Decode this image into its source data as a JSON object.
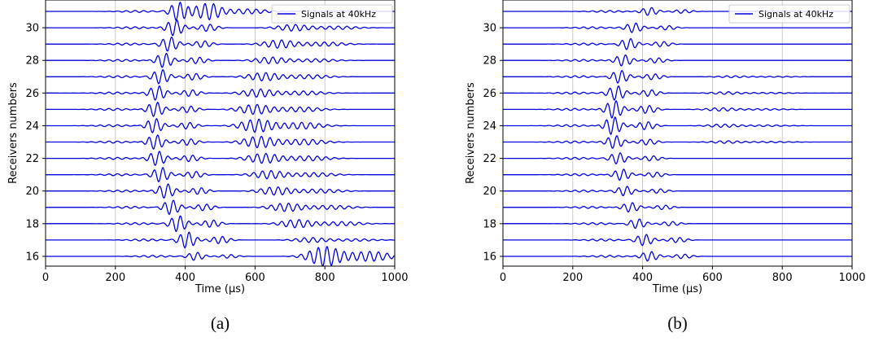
{
  "chart_data": [
    {
      "type": "line",
      "panel_label": "(a)",
      "xlabel": "Time (μs)",
      "ylabel": "Receivers numbers",
      "xlim": [
        0,
        1000
      ],
      "ylim": [
        15.4,
        31.7
      ],
      "xticks": [
        "0",
        "200",
        "400",
        "600",
        "800",
        "1000"
      ],
      "yticks": [
        "16",
        "18",
        "20",
        "22",
        "24",
        "26",
        "28",
        "30"
      ],
      "grid": "vertical",
      "legend": {
        "label": "Signals at 40kHz",
        "position": "top-right"
      },
      "line_color": "#0000dd",
      "receivers": [
        16,
        17,
        18,
        19,
        20,
        21,
        22,
        23,
        24,
        25,
        26,
        27,
        28,
        29,
        30,
        31
      ],
      "first_arrival_us": [
        430,
        405,
        380,
        360,
        345,
        330,
        320,
        315,
        312,
        315,
        320,
        330,
        340,
        355,
        370,
        380
      ],
      "first_amplitude": [
        0.25,
        0.5,
        0.5,
        0.45,
        0.45,
        0.45,
        0.45,
        0.45,
        0.45,
        0.45,
        0.45,
        0.45,
        0.45,
        0.45,
        0.5,
        0.55
      ],
      "second_arrival_us": [
        800,
        760,
        720,
        690,
        660,
        640,
        625,
        612,
        605,
        600,
        610,
        625,
        645,
        670,
        710,
        450
      ],
      "second_amplitude": [
        0.6,
        0.15,
        0.25,
        0.25,
        0.25,
        0.25,
        0.3,
        0.35,
        0.4,
        0.3,
        0.25,
        0.25,
        0.2,
        0.25,
        0.2,
        0.3
      ]
    },
    {
      "type": "line",
      "panel_label": "(b)",
      "xlabel": "Time (μs)",
      "ylabel": "Receivers numbers",
      "xlim": [
        0,
        1000
      ],
      "ylim": [
        15.4,
        31.7
      ],
      "xticks": [
        "0",
        "200",
        "400",
        "600",
        "800",
        "1000"
      ],
      "yticks": [
        "16",
        "18",
        "20",
        "22",
        "24",
        "26",
        "28",
        "30"
      ],
      "grid": "vertical",
      "legend": {
        "label": "Signals at 40kHz",
        "position": "top-right"
      },
      "line_color": "#0000dd",
      "receivers": [
        16,
        17,
        18,
        19,
        20,
        21,
        22,
        23,
        24,
        25,
        26,
        27,
        28,
        29,
        30,
        31
      ],
      "first_arrival_us": [
        420,
        405,
        385,
        365,
        350,
        340,
        330,
        320,
        315,
        318,
        325,
        335,
        345,
        360,
        375,
        420
      ],
      "first_amplitude": [
        0.3,
        0.35,
        0.3,
        0.3,
        0.3,
        0.35,
        0.35,
        0.4,
        0.55,
        0.55,
        0.45,
        0.4,
        0.35,
        0.35,
        0.3,
        0.25
      ],
      "second_arrival_us": [
        0,
        0,
        0,
        0,
        0,
        0,
        0,
        640,
        630,
        625,
        640,
        660,
        0,
        0,
        0,
        0
      ],
      "second_amplitude": [
        0,
        0,
        0,
        0,
        0,
        0,
        0,
        0.08,
        0.1,
        0.1,
        0.08,
        0.06,
        0,
        0,
        0,
        0
      ]
    }
  ]
}
